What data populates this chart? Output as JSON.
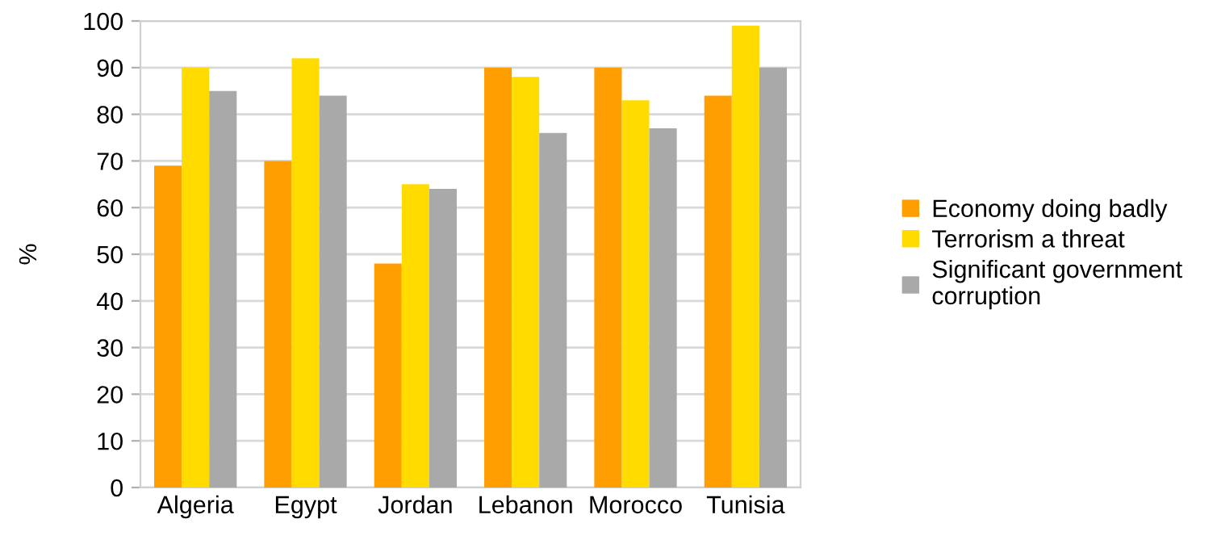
{
  "chart_data": {
    "type": "bar",
    "ylabel": "%",
    "categories": [
      "Algeria",
      "Egypt",
      "Jordan",
      "Lebanon",
      "Morocco",
      "Tunisia"
    ],
    "series": [
      {
        "name": "Economy doing badly",
        "color": "#ff9e00",
        "values": [
          69,
          70,
          48,
          90,
          90,
          84
        ]
      },
      {
        "name": "Terrorism a threat",
        "color": "#ffdb00",
        "values": [
          90,
          92,
          65,
          88,
          83,
          99
        ]
      },
      {
        "name": "Significant government\ncorruption",
        "color": "#a9a9a9",
        "values": [
          85,
          84,
          64,
          76,
          77,
          90
        ]
      }
    ],
    "ylim": [
      0,
      100
    ],
    "yticks": [
      0,
      10,
      20,
      30,
      40,
      50,
      60,
      70,
      80,
      90,
      100
    ],
    "grid": "y",
    "legend": "right"
  }
}
